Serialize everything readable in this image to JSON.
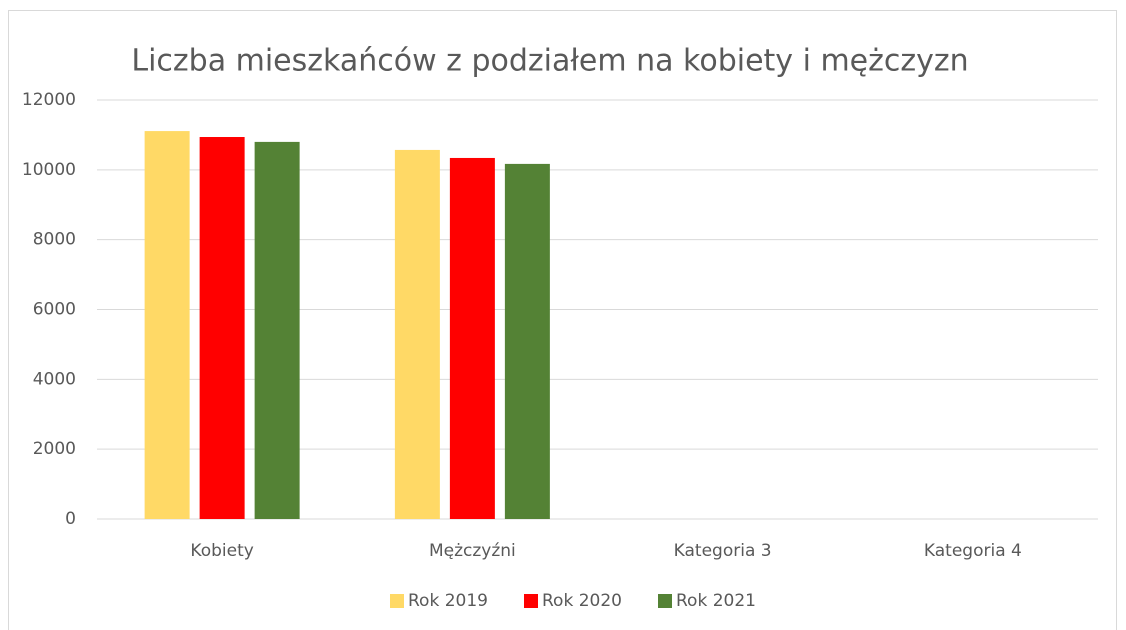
{
  "chart_data": {
    "type": "bar",
    "title": "Liczba mieszkańców z podziałem na kobiety i mężczyzn",
    "categories": [
      "Kobiety",
      "Mężczyźni",
      "Kategoria 3",
      "Kategoria 4"
    ],
    "series": [
      {
        "name": "Rok 2019",
        "color": "#ffd966",
        "values": [
          11110,
          10570,
          null,
          null
        ]
      },
      {
        "name": "Rok 2020",
        "color": "#ff0000",
        "values": [
          10940,
          10340,
          null,
          null
        ]
      },
      {
        "name": "Rok 2021",
        "color": "#548235",
        "values": [
          10800,
          10170,
          null,
          null
        ]
      }
    ],
    "ylim": [
      0,
      12000
    ],
    "yticks": [
      0,
      2000,
      4000,
      6000,
      8000,
      10000,
      12000
    ],
    "grid": true,
    "legend": "bottom"
  }
}
